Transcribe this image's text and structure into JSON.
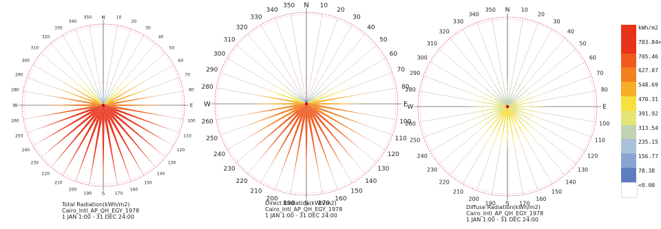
{
  "chart_data": [
    {
      "type": "radiation-rose",
      "title": "Total Radiation(kWh/m2)",
      "location": "Cairo_Intl_AP_QH_EGY_1978",
      "period": "1 JAN 1:00 - 31 DEC 24:00",
      "directions": [
        0,
        10,
        20,
        30,
        40,
        50,
        60,
        70,
        80,
        90,
        100,
        110,
        120,
        130,
        140,
        150,
        160,
        170,
        180,
        190,
        200,
        210,
        220,
        230,
        240,
        250,
        260,
        270,
        280,
        290,
        300,
        310,
        320,
        330,
        340,
        350
      ],
      "values": [
        240,
        260,
        310,
        380,
        440,
        500,
        560,
        600,
        640,
        700,
        750,
        800,
        840,
        870,
        890,
        900,
        905,
        910,
        910,
        910,
        905,
        900,
        890,
        870,
        840,
        800,
        750,
        700,
        640,
        600,
        560,
        500,
        440,
        380,
        310,
        260
      ]
    },
    {
      "type": "radiation-rose",
      "title": "Direct Radiation(kWh/m2)",
      "location": "Cairo_Intl_AP_QH_EGY_1978",
      "period": "1 JAN 1:00 - 31 DEC 24:00",
      "directions": [
        0,
        10,
        20,
        30,
        40,
        50,
        60,
        70,
        80,
        90,
        100,
        110,
        120,
        130,
        140,
        150,
        160,
        170,
        180,
        190,
        200,
        210,
        220,
        230,
        240,
        250,
        260,
        270,
        280,
        290,
        300,
        310,
        320,
        330,
        340,
        350
      ],
      "values": [
        40,
        60,
        110,
        200,
        300,
        380,
        450,
        500,
        560,
        590,
        630,
        670,
        700,
        720,
        740,
        750,
        755,
        760,
        760,
        760,
        755,
        750,
        740,
        720,
        700,
        670,
        630,
        590,
        560,
        500,
        450,
        380,
        300,
        200,
        110,
        60
      ]
    },
    {
      "type": "radiation-rose",
      "title": "Diffuse Radiation(kWh/m2)",
      "location": "Cairo_Intl_AP_QH_EGY_1978",
      "period": "1 JAN 1:00 - 31 DEC 24:00",
      "directions": [
        0,
        10,
        20,
        30,
        40,
        50,
        60,
        70,
        80,
        90,
        100,
        110,
        120,
        130,
        140,
        150,
        160,
        170,
        180,
        190,
        200,
        210,
        220,
        230,
        240,
        250,
        260,
        270,
        280,
        290,
        300,
        310,
        320,
        330,
        340,
        350
      ],
      "values": [
        340,
        350,
        360,
        370,
        380,
        390,
        400,
        410,
        420,
        430,
        440,
        450,
        460,
        470,
        480,
        490,
        495,
        500,
        500,
        500,
        495,
        490,
        480,
        470,
        460,
        450,
        440,
        430,
        420,
        410,
        400,
        390,
        380,
        370,
        360,
        350
      ]
    }
  ],
  "compass": {
    "north": "N",
    "south": "S",
    "east": "E",
    "west": "W"
  },
  "legend": {
    "unit": "kWh/m2",
    "items": [
      {
        "label": "kWh/m2",
        "color": "#e8331a"
      },
      {
        "label": "783.84<=",
        "color": "#e8331a"
      },
      {
        "label": "705.46",
        "color": "#ee5a1c"
      },
      {
        "label": "627.07",
        "color": "#f2801f"
      },
      {
        "label": "548.69",
        "color": "#f6ad27"
      },
      {
        "label": "470.31",
        "color": "#f6df3e"
      },
      {
        "label": "391.92",
        "color": "#e4e477"
      },
      {
        "label": "313.54",
        "color": "#c3d2b2"
      },
      {
        "label": "235.15",
        "color": "#a9c1d6"
      },
      {
        "label": "156.77",
        "color": "#8aa4d2"
      },
      {
        "label": "78.38",
        "color": "#5e7dbf"
      },
      {
        "label": "<0.00",
        "color": "#ffffff"
      }
    ]
  }
}
